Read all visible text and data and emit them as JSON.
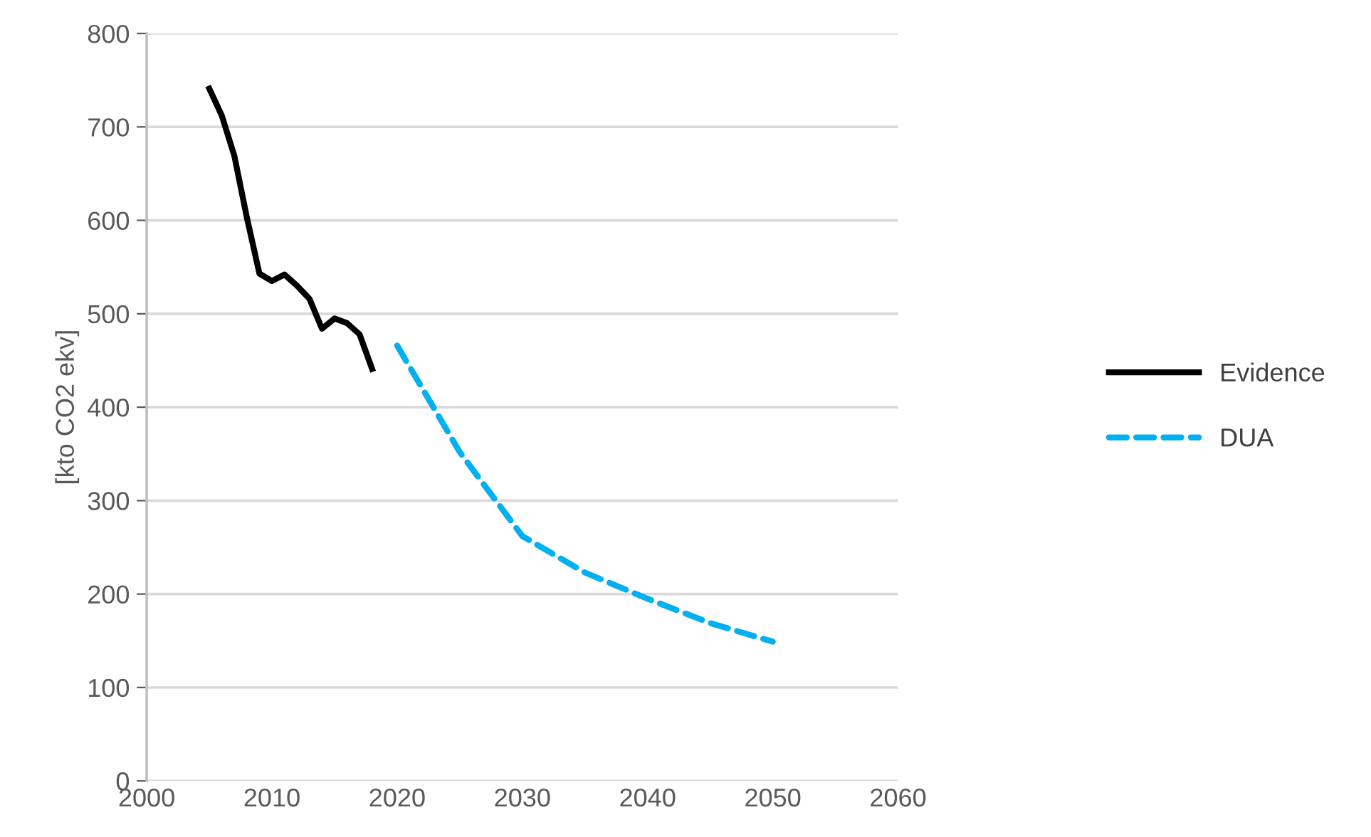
{
  "chart_data": {
    "type": "line",
    "ylabel": "[kto CO2 ekv]",
    "xlim": [
      2000,
      2060
    ],
    "xticks": [
      2000,
      2010,
      2020,
      2030,
      2040,
      2050,
      2060
    ],
    "ylim": [
      0,
      800
    ],
    "yticks": [
      0,
      100,
      200,
      300,
      400,
      500,
      600,
      700,
      800
    ],
    "grid": "y",
    "legend": "right",
    "marker": "none",
    "series": [
      {
        "name": "Evidence",
        "color": "#000000",
        "line_style": "solid",
        "x": [
          2005,
          2006,
          2007,
          2008,
          2009,
          2010,
          2011,
          2012,
          2013,
          2014,
          2015,
          2016,
          2017,
          2018
        ],
        "values": [
          741,
          712,
          669,
          603,
          543,
          535,
          542,
          530,
          516,
          484,
          495,
          490,
          478,
          441
        ]
      },
      {
        "name": "DUA",
        "color": "#00b0f0",
        "line_style": "dashed",
        "x": [
          2020,
          2025,
          2030,
          2035,
          2040,
          2045,
          2050
        ],
        "values": [
          466,
          352,
          262,
          223,
          195,
          169,
          149
        ]
      }
    ]
  }
}
